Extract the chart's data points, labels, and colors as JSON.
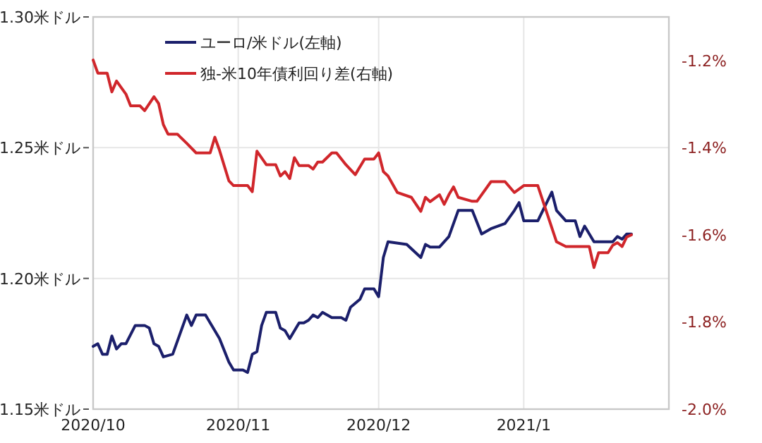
{
  "chart_data": {
    "type": "line",
    "xlim": [
      "2020-10-01",
      "2021-02-01"
    ],
    "xticks": [
      {
        "value": "2020-10",
        "label": "2020/10"
      },
      {
        "value": "2020-11",
        "label": "2020/11"
      },
      {
        "value": "2020-12",
        "label": "2020/12"
      },
      {
        "value": "2021-01",
        "label": "2021/1"
      }
    ],
    "ylim": [
      1.15,
      1.3
    ],
    "yticks": [
      {
        "value": 1.15,
        "label": "1.15米ドル"
      },
      {
        "value": 1.2,
        "label": "1.20米ドル"
      },
      {
        "value": 1.25,
        "label": "1.25米ドル"
      },
      {
        "value": 1.3,
        "label": "1.30米ドル"
      }
    ],
    "y2lim": [
      -2.0,
      -1.1
    ],
    "y2ticks": [
      {
        "value": -2.0,
        "label": "-2.0%"
      },
      {
        "value": -1.8,
        "label": "-1.8%"
      },
      {
        "value": -1.6,
        "label": "-1.6%"
      },
      {
        "value": -1.4,
        "label": "-1.4%"
      },
      {
        "value": -1.2,
        "label": "-1.2%"
      }
    ],
    "grid": true,
    "legend": "top left",
    "series": [
      {
        "name": "ユーロ/米ドル(左軸)",
        "color": "#1b1f6b",
        "x": [
          "2020-10-01",
          "2020-10-02",
          "2020-10-03",
          "2020-10-04",
          "2020-10-05",
          "2020-10-06",
          "2020-10-07",
          "2020-10-08",
          "2020-10-10",
          "2020-10-12",
          "2020-10-13",
          "2020-10-14",
          "2020-10-15",
          "2020-10-16",
          "2020-10-18",
          "2020-10-19",
          "2020-10-21",
          "2020-10-22",
          "2020-10-23",
          "2020-10-25",
          "2020-10-27",
          "2020-10-28",
          "2020-10-30",
          "2020-10-31",
          "2020-11-02",
          "2020-11-03",
          "2020-11-04",
          "2020-11-05",
          "2020-11-06",
          "2020-11-07",
          "2020-11-09",
          "2020-11-10",
          "2020-11-11",
          "2020-11-12",
          "2020-11-14",
          "2020-11-15",
          "2020-11-16",
          "2020-11-17",
          "2020-11-18",
          "2020-11-19",
          "2020-11-21",
          "2020-11-23",
          "2020-11-24",
          "2020-11-25",
          "2020-11-27",
          "2020-11-28",
          "2020-11-30",
          "2020-12-01",
          "2020-12-02",
          "2020-12-03",
          "2020-12-07",
          "2020-12-10",
          "2020-12-11",
          "2020-12-12",
          "2020-12-14",
          "2020-12-16",
          "2020-12-18",
          "2020-12-21",
          "2020-12-23",
          "2020-12-25",
          "2020-12-28",
          "2020-12-30",
          "2020-12-31",
          "2021-01-01",
          "2021-01-04",
          "2021-01-07",
          "2021-01-08",
          "2021-01-10",
          "2021-01-12",
          "2021-01-13",
          "2021-01-14",
          "2021-01-16",
          "2021-01-20",
          "2021-01-21",
          "2021-01-22",
          "2021-01-23",
          "2021-01-24"
        ],
        "values": [
          1.174,
          1.175,
          1.171,
          1.171,
          1.178,
          1.173,
          1.175,
          1.175,
          1.182,
          1.182,
          1.181,
          1.175,
          1.174,
          1.17,
          1.171,
          1.176,
          1.186,
          1.182,
          1.186,
          1.186,
          1.18,
          1.177,
          1.168,
          1.165,
          1.165,
          1.164,
          1.171,
          1.172,
          1.182,
          1.187,
          1.187,
          1.181,
          1.18,
          1.177,
          1.183,
          1.183,
          1.184,
          1.186,
          1.185,
          1.187,
          1.185,
          1.185,
          1.184,
          1.189,
          1.192,
          1.196,
          1.196,
          1.193,
          1.208,
          1.214,
          1.213,
          1.208,
          1.213,
          1.212,
          1.212,
          1.216,
          1.226,
          1.226,
          1.217,
          1.219,
          1.221,
          1.226,
          1.229,
          1.222,
          1.222,
          1.233,
          1.226,
          1.222,
          1.222,
          1.216,
          1.22,
          1.214,
          1.214,
          1.216,
          1.215,
          1.217,
          1.217
        ]
      },
      {
        "name": "独-米10年債利回り差(右軸)",
        "color": "#d0262b",
        "axis": "y2",
        "x": [
          "2020-10-01",
          "2020-10-02",
          "2020-10-04",
          "2020-10-05",
          "2020-10-06",
          "2020-10-08",
          "2020-10-09",
          "2020-10-11",
          "2020-10-12",
          "2020-10-14",
          "2020-10-15",
          "2020-10-16",
          "2020-10-17",
          "2020-10-19",
          "2020-10-21",
          "2020-10-23",
          "2020-10-26",
          "2020-10-27",
          "2020-10-28",
          "2020-10-30",
          "2020-10-31",
          "2020-11-03",
          "2020-11-04",
          "2020-11-05",
          "2020-11-07",
          "2020-11-09",
          "2020-11-10",
          "2020-11-11",
          "2020-11-12",
          "2020-11-13",
          "2020-11-14",
          "2020-11-16",
          "2020-11-17",
          "2020-11-18",
          "2020-11-19",
          "2020-11-21",
          "2020-11-22",
          "2020-11-24",
          "2020-11-26",
          "2020-11-28",
          "2020-11-30",
          "2020-12-01",
          "2020-12-02",
          "2020-12-03",
          "2020-12-05",
          "2020-12-08",
          "2020-12-10",
          "2020-12-11",
          "2020-12-12",
          "2020-12-14",
          "2020-12-15",
          "2020-12-16",
          "2020-12-17",
          "2020-12-18",
          "2020-12-21",
          "2020-12-22",
          "2020-12-25",
          "2020-12-28",
          "2020-12-30",
          "2021-01-01",
          "2021-01-04",
          "2021-01-06",
          "2021-01-08",
          "2021-01-10",
          "2021-01-15",
          "2021-01-16",
          "2021-01-17",
          "2021-01-19",
          "2021-01-20",
          "2021-01-21",
          "2021-01-22",
          "2021-01-23",
          "2021-01-24"
        ],
        "values": [
          -1.199,
          -1.229,
          -1.229,
          -1.272,
          -1.247,
          -1.277,
          -1.304,
          -1.304,
          -1.315,
          -1.283,
          -1.299,
          -1.347,
          -1.369,
          -1.369,
          -1.39,
          -1.412,
          -1.412,
          -1.376,
          -1.406,
          -1.476,
          -1.487,
          -1.487,
          -1.501,
          -1.408,
          -1.439,
          -1.439,
          -1.465,
          -1.455,
          -1.471,
          -1.423,
          -1.441,
          -1.441,
          -1.449,
          -1.433,
          -1.433,
          -1.412,
          -1.412,
          -1.439,
          -1.462,
          -1.426,
          -1.426,
          -1.412,
          -1.455,
          -1.465,
          -1.503,
          -1.514,
          -1.546,
          -1.514,
          -1.524,
          -1.508,
          -1.53,
          -1.508,
          -1.49,
          -1.514,
          -1.523,
          -1.523,
          -1.478,
          -1.478,
          -1.503,
          -1.487,
          -1.487,
          -1.552,
          -1.616,
          -1.627,
          -1.627,
          -1.675,
          -1.641,
          -1.641,
          -1.624,
          -1.618,
          -1.627,
          -1.605,
          -1.6
        ]
      }
    ]
  }
}
